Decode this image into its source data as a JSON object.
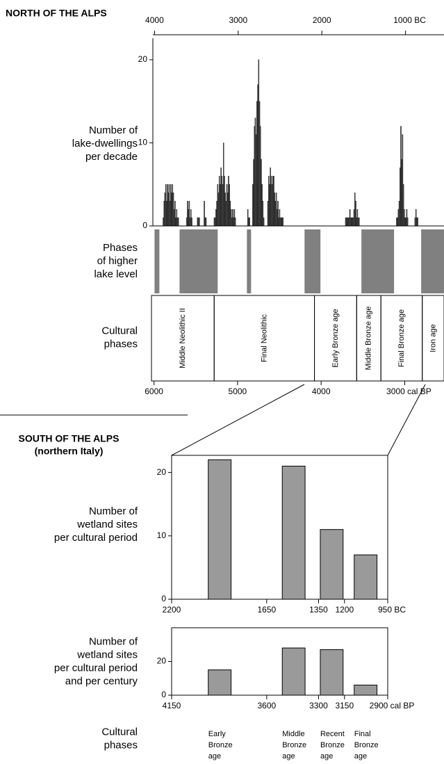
{
  "sections": [
    {
      "title": "NORTH OF THE ALPS"
    },
    {
      "title": "SOUTH OF THE ALPS",
      "subtitle": "(northern Italy)"
    }
  ],
  "chart_data": [
    {
      "type": "bar",
      "y_label": [
        "Number of",
        "lake-dwellings",
        "per decade"
      ],
      "x": [
        3900,
        3890,
        3880,
        3870,
        3860,
        3850,
        3840,
        3830,
        3820,
        3810,
        3800,
        3790,
        3780,
        3770,
        3760,
        3750,
        3740,
        3730,
        3720,
        3620,
        3610,
        3600,
        3590,
        3580,
        3570,
        3560,
        3490,
        3480,
        3470,
        3410,
        3400,
        3390,
        3290,
        3280,
        3270,
        3260,
        3250,
        3240,
        3230,
        3220,
        3210,
        3200,
        3190,
        3180,
        3170,
        3160,
        3150,
        3140,
        3130,
        3120,
        3110,
        3100,
        3090,
        3080,
        3070,
        3060,
        3050,
        3040,
        2890,
        2880,
        2870,
        2830,
        2820,
        2810,
        2800,
        2790,
        2780,
        2770,
        2760,
        2750,
        2740,
        2730,
        2720,
        2710,
        2700,
        2650,
        2640,
        2630,
        2620,
        2610,
        2600,
        2590,
        2580,
        2570,
        2560,
        2550,
        2540,
        2530,
        2520,
        2510,
        2500,
        2490,
        2480,
        2470,
        1720,
        1710,
        1700,
        1690,
        1680,
        1670,
        1660,
        1650,
        1640,
        1630,
        1620,
        1610,
        1600,
        1590,
        1580,
        1570,
        1560,
        1110,
        1100,
        1090,
        1080,
        1070,
        1060,
        1050,
        1040,
        1030,
        1020,
        1010,
        1000,
        990,
        980,
        890,
        880,
        870,
        860
      ],
      "values": [
        1,
        3,
        4,
        5,
        3,
        5,
        4,
        5,
        3,
        5,
        4,
        5,
        4,
        2,
        3,
        1,
        2,
        1,
        1,
        1,
        3,
        2,
        3,
        1,
        2,
        1,
        1,
        1,
        1,
        3,
        1,
        1,
        1,
        1,
        2,
        3,
        5,
        4,
        6,
        5,
        7,
        6,
        5,
        10,
        6,
        4,
        3,
        5,
        4,
        6,
        5,
        3,
        2,
        1,
        2,
        1,
        2,
        1,
        2,
        1,
        1,
        5,
        8,
        12,
        13,
        11,
        15,
        17,
        20,
        15,
        12,
        8,
        5,
        3,
        1,
        3,
        6,
        5,
        7,
        6,
        5,
        6,
        6,
        4,
        3,
        4,
        2,
        3,
        1,
        2,
        1,
        1,
        1,
        1,
        1,
        1,
        1,
        1,
        1,
        2,
        1,
        1,
        1,
        1,
        2,
        4,
        3,
        1,
        2,
        1,
        1,
        1,
        1,
        2,
        3,
        7,
        12,
        8,
        11,
        5,
        2,
        1,
        1,
        2,
        1,
        1,
        2,
        1,
        1
      ],
      "color": "#474747",
      "xlim": [
        4020,
        540
      ],
      "ylim": [
        0,
        23
      ],
      "xticks": [
        4000,
        3000,
        2000,
        {
          "value": 1000,
          "label": "1000 BC"
        }
      ],
      "yticks": [
        0,
        10,
        20
      ]
    },
    {
      "type": "range",
      "y_label": [
        "Phases",
        "of higher",
        "lake level"
      ],
      "ranges": [
        [
          4000,
          3942
        ],
        [
          3701,
          3245
        ],
        [
          2896,
          2846
        ],
        [
          2207,
          2017
        ],
        [
          1527,
          1137
        ],
        [
          813,
          540
        ]
      ],
      "color": "#808080",
      "xlim": [
        4020,
        540
      ]
    },
    {
      "type": "phases",
      "y_label": [
        "Cultural",
        "phases"
      ],
      "phases": [
        {
          "label": "Middle Neolithic II",
          "start": 6030,
          "end": 5280
        },
        {
          "label": "Final Neolithic",
          "start": 5280,
          "end": 4080
        },
        {
          "label": "Early Bronze age",
          "start": 4080,
          "end": 3575
        },
        {
          "label": "Middle Bronze age",
          "start": 3575,
          "end": 3285
        },
        {
          "label": "Final Bronze age",
          "start": 3285,
          "end": 2790
        },
        {
          "label": "Iron age",
          "start": 2790,
          "end": 2530
        }
      ],
      "xlim": [
        6030,
        2530
      ],
      "xticks": [
        6000,
        5000,
        4000,
        {
          "value": 3000,
          "label": "3000 cal BP"
        }
      ]
    },
    {
      "type": "range-bar",
      "y_label": [
        "Number of",
        "wetland sites",
        "per cultural period"
      ],
      "bar_ranges": [
        [
          1988,
          1856
        ],
        [
          1560,
          1428
        ],
        [
          1340,
          1208
        ],
        [
          1144,
          1012
        ]
      ],
      "values": [
        22,
        21,
        11,
        7
      ],
      "color": "#9a9a9a",
      "xlim": [
        2200,
        950
      ],
      "ylim": [
        0,
        22.7
      ],
      "xticks": [
        2200,
        1650,
        1350,
        1200,
        {
          "value": 950,
          "label": "950 BC"
        }
      ],
      "yticks": [
        0,
        10,
        20
      ]
    },
    {
      "type": "range-bar",
      "y_label": [
        "Number of",
        "wetland sites",
        "per cultural period",
        "and per century"
      ],
      "bar_ranges": [
        [
          3938,
          3806
        ],
        [
          3510,
          3378
        ],
        [
          3290,
          3158
        ],
        [
          3094,
          2962
        ]
      ],
      "values": [
        15,
        28,
        27,
        6
      ],
      "color": "#9a9a9a",
      "xlim": [
        4150,
        2900
      ],
      "ylim": [
        0,
        40
      ],
      "xticks": [
        4150,
        3600,
        3300,
        3150,
        {
          "value": 2900,
          "label": "2900 cal BP"
        }
      ],
      "yticks": [
        0,
        20
      ],
      "phase_title": [
        "Cultural",
        "phases"
      ],
      "phase_labels": [
        [
          "Early",
          "Bronze",
          "age"
        ],
        [
          "Middle",
          "Bronze",
          "age"
        ],
        [
          "Recent",
          "Bronze",
          "age"
        ],
        [
          "Final",
          "Bronze",
          "age"
        ]
      ]
    }
  ]
}
